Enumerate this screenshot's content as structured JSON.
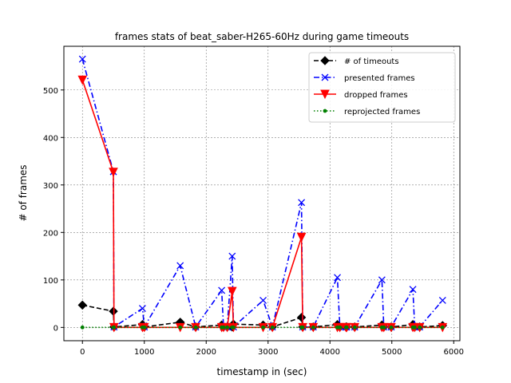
{
  "chart_data": {
    "type": "line",
    "title": "frames stats of beat_saber-H265-60Hz during game timeouts",
    "xlabel": "timestamp in (sec)",
    "ylabel": "# of frames",
    "xlim": [
      -300,
      6100
    ],
    "ylim": [
      -28,
      592
    ],
    "xticks": [
      0,
      1000,
      2000,
      3000,
      4000,
      5000,
      6000
    ],
    "yticks": [
      0,
      100,
      200,
      300,
      400,
      500
    ],
    "grid": true,
    "legend_position": "top-right",
    "series": [
      {
        "name": "# of timeouts",
        "color": "#000000",
        "dash": "dashed",
        "marker": "diamond",
        "x": [
          0,
          500,
          510,
          970,
          1000,
          1580,
          1830,
          2250,
          2280,
          2340,
          2420,
          2440,
          2920,
          3070,
          3540,
          3560,
          3730,
          4120,
          4160,
          4260,
          4270,
          4400,
          4840,
          4870,
          4990,
          5340,
          5370,
          5450,
          5820
        ],
        "y": [
          47,
          34,
          1,
          6,
          1,
          11,
          1,
          5,
          1,
          1,
          1,
          7,
          5,
          1,
          21,
          1,
          1,
          6,
          1,
          1,
          1,
          1,
          5,
          1,
          1,
          6,
          1,
          1,
          4
        ]
      },
      {
        "name": "presented frames",
        "color": "#0000ff",
        "dash": "dashdot",
        "marker": "x",
        "x": [
          0,
          500,
          510,
          970,
          1000,
          1580,
          1830,
          2250,
          2280,
          2340,
          2420,
          2440,
          2920,
          3070,
          3540,
          3560,
          3730,
          4120,
          4160,
          4260,
          4270,
          4400,
          4840,
          4870,
          4990,
          5340,
          5370,
          5450,
          5820
        ],
        "y": [
          565,
          328,
          1,
          40,
          1,
          130,
          1,
          78,
          1,
          1,
          150,
          1,
          57,
          1,
          263,
          1,
          1,
          105,
          1,
          1,
          1,
          1,
          100,
          1,
          1,
          80,
          1,
          1,
          57
        ]
      },
      {
        "name": "dropped frames",
        "color": "#ff0000",
        "dash": "solid",
        "marker": "triangle-down",
        "x": [
          0,
          500,
          510,
          970,
          1000,
          1580,
          1830,
          2250,
          2280,
          2340,
          2420,
          2440,
          2920,
          3070,
          3540,
          3560,
          3730,
          4120,
          4160,
          4260,
          4270,
          4400,
          4840,
          4870,
          4990,
          5340,
          5370,
          5450,
          5820
        ],
        "y": [
          521,
          327,
          0,
          0,
          0,
          0,
          0,
          0,
          0,
          0,
          76,
          0,
          0,
          0,
          190,
          0,
          0,
          0,
          0,
          0,
          0,
          0,
          0,
          0,
          0,
          0,
          0,
          0,
          0
        ]
      },
      {
        "name": "reprojected frames",
        "color": "#008000",
        "dash": "dotted",
        "marker": "dot",
        "x": [
          0,
          500,
          510,
          970,
          1000,
          1580,
          1830,
          2250,
          2280,
          2340,
          2420,
          2440,
          2920,
          3070,
          3540,
          3560,
          3730,
          4120,
          4160,
          4260,
          4270,
          4400,
          4840,
          4870,
          4990,
          5340,
          5370,
          5450,
          5820
        ],
        "y": [
          0,
          0,
          0,
          0,
          0,
          0,
          0,
          0,
          0,
          0,
          0,
          0,
          0,
          0,
          0,
          0,
          0,
          0,
          0,
          0,
          0,
          0,
          0,
          0,
          0,
          0,
          0,
          0,
          0
        ]
      }
    ]
  }
}
